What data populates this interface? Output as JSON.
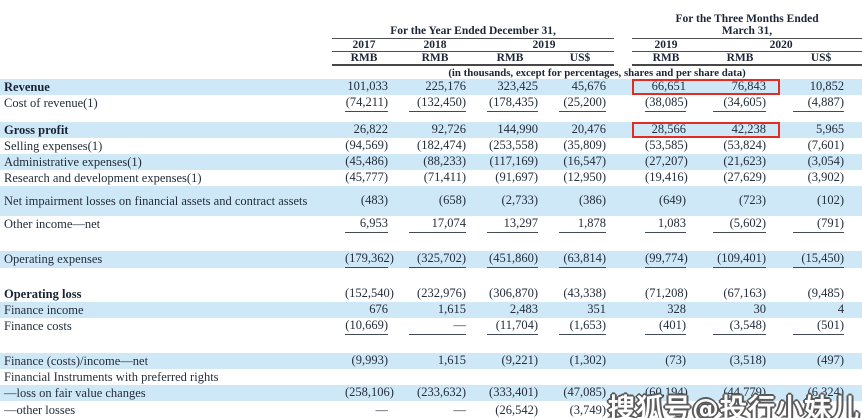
{
  "watermark": "搜狐号@投行小妹儿",
  "colors": {
    "band": "#cfe8f7",
    "highlight_box": "#e02e24",
    "text": "#232d3b"
  },
  "table": {
    "group1": {
      "title": "For the Year Ended December 31,"
    },
    "group2": {
      "title_line1": "For the Three Months Ended",
      "title_line2": "March 31,"
    },
    "years": [
      "2017",
      "2018",
      "2019",
      "2019",
      "2020"
    ],
    "currencies": [
      "RMB",
      "RMB",
      "RMB",
      "US$",
      "RMB",
      "RMB",
      "US$"
    ],
    "unit_note": "(in thousands, except for percentages, shares and per share data)",
    "rows": [
      {
        "label": "Revenue",
        "bold": true,
        "band": true,
        "highlight": [
          4,
          5
        ],
        "values": [
          "101,033",
          "225,176",
          "323,425",
          "45,676",
          "66,651",
          "76,843",
          "10,852"
        ]
      },
      {
        "label": "Cost of revenue(1)",
        "underline": true,
        "values": [
          "(74,211)",
          "(132,450)",
          "(178,435)",
          "(25,200)",
          "(38,085)",
          "(34,605)",
          "(4,887)"
        ]
      },
      {
        "spacer": 10
      },
      {
        "label": "Gross profit",
        "bold": true,
        "band": true,
        "highlight": [
          4,
          5
        ],
        "values": [
          "26,822",
          "92,726",
          "144,990",
          "20,476",
          "28,566",
          "42,238",
          "5,965"
        ]
      },
      {
        "label": "Selling expenses(1)",
        "values": [
          "(94,569)",
          "(182,474)",
          "(253,558)",
          "(35,809)",
          "(53,585)",
          "(53,824)",
          "(7,601)"
        ]
      },
      {
        "label": "Administrative expenses(1)",
        "band": true,
        "values": [
          "(45,486)",
          "(88,233)",
          "(117,169)",
          "(16,547)",
          "(27,207)",
          "(21,623)",
          "(3,054)"
        ]
      },
      {
        "label": "Research and development expenses(1)",
        "values": [
          "(45,777)",
          "(71,411)",
          "(91,697)",
          "(12,950)",
          "(19,416)",
          "(27,629)",
          "(3,902)"
        ]
      },
      {
        "label": "Net impairment losses on financial assets and contract assets",
        "band": true,
        "wrap": true,
        "values": [
          "(483)",
          "(658)",
          "(2,733)",
          "(386)",
          "(649)",
          "(723)",
          "(102)"
        ]
      },
      {
        "label": "Other income—net",
        "underline": true,
        "values": [
          "6,953",
          "17,074",
          "13,297",
          "1,878",
          "1,083",
          "(5,602)",
          "(791)"
        ]
      },
      {
        "spacer": 18
      },
      {
        "label": "Operating expenses",
        "band": true,
        "underline": true,
        "values": [
          "(179,362)",
          "(325,702)",
          "(451,860)",
          "(63,814)",
          "(99,774)",
          "(109,401)",
          "(15,450)"
        ]
      },
      {
        "spacer": 18
      },
      {
        "label": "Operating loss",
        "bold": true,
        "values": [
          "(152,540)",
          "(232,976)",
          "(306,870)",
          "(43,338)",
          "(71,208)",
          "(67,163)",
          "(9,485)"
        ]
      },
      {
        "label": "Finance income",
        "band": true,
        "values": [
          "676",
          "1,615",
          "2,483",
          "351",
          "328",
          "30",
          "4"
        ]
      },
      {
        "label": "Finance costs",
        "underline": true,
        "values": [
          "(10,669)",
          "—",
          "(11,704)",
          "(1,653)",
          "(401)",
          "(3,548)",
          "(501)"
        ]
      },
      {
        "spacer": 18
      },
      {
        "label": "Finance (costs)/income—net",
        "band": true,
        "values": [
          "(9,993)",
          "1,615",
          "(9,221)",
          "(1,302)",
          "(73)",
          "(3,518)",
          "(497)"
        ]
      },
      {
        "label": "Financial Instruments with preferred rights",
        "values": null
      },
      {
        "label": "—loss on fair value changes",
        "band": true,
        "values": [
          "(258,106)",
          "(233,632)",
          "(333,401)",
          "(47,085)",
          "(60,194)",
          "(44,779)",
          "(6,324)"
        ]
      },
      {
        "label": "—other losses",
        "underline": true,
        "last": true,
        "values": [
          "—",
          "—",
          "(26,542)",
          "(3,749)",
          "—",
          "",
          ""
        ]
      }
    ]
  }
}
